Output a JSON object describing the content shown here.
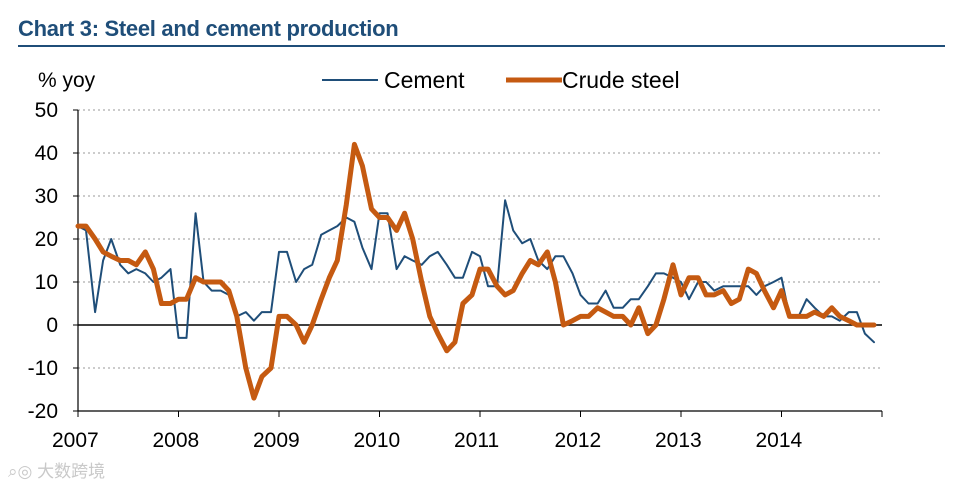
{
  "chart_data": {
    "type": "line",
    "title": "Chart 3: Steel and cement production",
    "ylabel": "% yoy",
    "xlabel": "",
    "ylim": [
      -20,
      50
    ],
    "yticks": [
      -20,
      -10,
      0,
      10,
      20,
      30,
      40,
      50
    ],
    "xlim": [
      2007,
      2015
    ],
    "xticks": [
      "2007",
      "2008",
      "2009",
      "2010",
      "2011",
      "2012",
      "2013",
      "2014"
    ],
    "grid": "horizontal dotted",
    "legend_position": "top",
    "series": [
      {
        "name": "Cement",
        "color": "#1f4e79",
        "x": [
          2007.0,
          2007.08,
          2007.17,
          2007.25,
          2007.33,
          2007.42,
          2007.5,
          2007.58,
          2007.67,
          2007.75,
          2007.83,
          2007.92,
          2008.0,
          2008.08,
          2008.17,
          2008.25,
          2008.33,
          2008.42,
          2008.5,
          2008.58,
          2008.67,
          2008.75,
          2008.83,
          2008.92,
          2009.0,
          2009.08,
          2009.17,
          2009.25,
          2009.33,
          2009.42,
          2009.5,
          2009.58,
          2009.67,
          2009.75,
          2009.83,
          2009.92,
          2010.0,
          2010.08,
          2010.17,
          2010.25,
          2010.33,
          2010.42,
          2010.5,
          2010.58,
          2010.67,
          2010.75,
          2010.83,
          2010.92,
          2011.0,
          2011.08,
          2011.17,
          2011.25,
          2011.33,
          2011.42,
          2011.5,
          2011.58,
          2011.67,
          2011.75,
          2011.83,
          2011.92,
          2012.0,
          2012.08,
          2012.17,
          2012.25,
          2012.33,
          2012.42,
          2012.5,
          2012.58,
          2012.67,
          2012.75,
          2012.83,
          2012.92,
          2013.0,
          2013.08,
          2013.17,
          2013.25,
          2013.33,
          2013.42,
          2013.5,
          2013.58,
          2013.67,
          2013.75,
          2013.83,
          2013.92,
          2014.0,
          2014.08,
          2014.17,
          2014.25,
          2014.33,
          2014.42,
          2014.5,
          2014.58,
          2014.67,
          2014.75,
          2014.83,
          2014.92
        ],
        "values": [
          23,
          22,
          3,
          15,
          20,
          14,
          12,
          13,
          12,
          10,
          11,
          13,
          -3,
          -3,
          26,
          10,
          8,
          8,
          7,
          2,
          3,
          1,
          3,
          3,
          17,
          17,
          10,
          13,
          14,
          21,
          22,
          23,
          25,
          24,
          18,
          13,
          26,
          26,
          13,
          16,
          15,
          14,
          16,
          17,
          14,
          11,
          11,
          17,
          16,
          9,
          9,
          29,
          22,
          19,
          20,
          15,
          13,
          16,
          16,
          12,
          7,
          5,
          5,
          8,
          4,
          4,
          6,
          6,
          9,
          12,
          12,
          11,
          10,
          6,
          10,
          10,
          8,
          9,
          9,
          9,
          9,
          7,
          9,
          10,
          11,
          2,
          2,
          6,
          4,
          2,
          2,
          1,
          3,
          3,
          -2,
          -4
        ]
      },
      {
        "name": "Crude steel",
        "color": "#c55a11",
        "x": [
          2007.0,
          2007.08,
          2007.17,
          2007.25,
          2007.33,
          2007.42,
          2007.5,
          2007.58,
          2007.67,
          2007.75,
          2007.83,
          2007.92,
          2008.0,
          2008.08,
          2008.17,
          2008.25,
          2008.33,
          2008.42,
          2008.5,
          2008.58,
          2008.67,
          2008.75,
          2008.83,
          2008.92,
          2009.0,
          2009.08,
          2009.17,
          2009.25,
          2009.33,
          2009.42,
          2009.5,
          2009.58,
          2009.67,
          2009.75,
          2009.83,
          2009.92,
          2010.0,
          2010.08,
          2010.17,
          2010.25,
          2010.33,
          2010.42,
          2010.5,
          2010.58,
          2010.67,
          2010.75,
          2010.83,
          2010.92,
          2011.0,
          2011.08,
          2011.17,
          2011.25,
          2011.33,
          2011.42,
          2011.5,
          2011.58,
          2011.67,
          2011.75,
          2011.83,
          2011.92,
          2012.0,
          2012.08,
          2012.17,
          2012.25,
          2012.33,
          2012.42,
          2012.5,
          2012.58,
          2012.67,
          2012.75,
          2012.83,
          2012.92,
          2013.0,
          2013.08,
          2013.17,
          2013.25,
          2013.33,
          2013.42,
          2013.5,
          2013.58,
          2013.67,
          2013.75,
          2013.83,
          2013.92,
          2014.0,
          2014.08,
          2014.17,
          2014.25,
          2014.33,
          2014.42,
          2014.5,
          2014.58,
          2014.67,
          2014.75,
          2014.83,
          2014.92
        ],
        "values": [
          23,
          23,
          20,
          17,
          16,
          15,
          15,
          14,
          17,
          13,
          5,
          5,
          6,
          6,
          11,
          10,
          10,
          10,
          8,
          2,
          -10,
          -17,
          -12,
          -10,
          2,
          2,
          0,
          -4,
          0,
          6,
          11,
          15,
          28,
          42,
          37,
          27,
          25,
          25,
          22,
          26,
          20,
          10,
          2,
          -2,
          -6,
          -4,
          5,
          7,
          13,
          13,
          9,
          7,
          8,
          12,
          15,
          14,
          17,
          10,
          0,
          1,
          2,
          2,
          4,
          3,
          2,
          2,
          0,
          4,
          -2,
          0,
          6,
          14,
          7,
          11,
          11,
          7,
          7,
          8,
          5,
          6,
          13,
          12,
          8,
          4,
          8,
          2,
          2,
          2,
          3,
          2,
          4,
          2,
          1,
          0,
          0,
          0
        ]
      }
    ]
  },
  "watermark": "大数跨境"
}
